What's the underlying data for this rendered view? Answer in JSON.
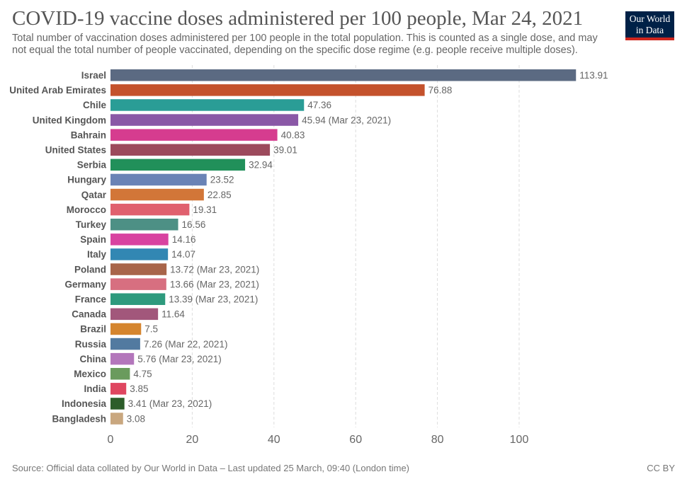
{
  "header": {
    "title": "COVID-19 vaccine doses administered per 100 people, Mar 24, 2021",
    "subtitle": "Total number of vaccination doses administered per 100 people in the total population. This is counted as a single dose, and may not equal the total number of people vaccinated, depending on the specific dose regime (e.g. people receive multiple doses).",
    "logo_line1": "Our World",
    "logo_line2": "in Data"
  },
  "footer": {
    "source": "Source: Official data collated by Our World in Data – Last updated 25 March, 09:40 (London time)",
    "license": "CC BY"
  },
  "chart_data": {
    "type": "bar",
    "orientation": "horizontal",
    "title": "COVID-19 vaccine doses administered per 100 people, Mar 24, 2021",
    "xlabel": "",
    "ylabel": "",
    "xlim": [
      0,
      120
    ],
    "xticks": [
      0,
      20,
      40,
      60,
      80,
      100
    ],
    "grid": "vertical dashed",
    "categories": [
      "Israel",
      "United Arab Emirates",
      "Chile",
      "United Kingdom",
      "Bahrain",
      "United States",
      "Serbia",
      "Hungary",
      "Qatar",
      "Morocco",
      "Turkey",
      "Spain",
      "Italy",
      "Poland",
      "Germany",
      "France",
      "Canada",
      "Brazil",
      "Russia",
      "China",
      "Mexico",
      "India",
      "Indonesia",
      "Bangladesh"
    ],
    "values": [
      113.91,
      76.88,
      47.36,
      45.94,
      40.83,
      39.01,
      32.94,
      23.52,
      22.85,
      19.31,
      16.56,
      14.16,
      14.07,
      13.72,
      13.66,
      13.39,
      11.64,
      7.5,
      7.26,
      5.76,
      4.75,
      3.85,
      3.41,
      3.08
    ],
    "value_labels": [
      "113.91",
      "76.88",
      "47.36",
      "45.94 (Mar 23, 2021)",
      "40.83",
      "39.01",
      "32.94",
      "23.52",
      "22.85",
      "19.31",
      "16.56",
      "14.16",
      "14.07",
      "13.72 (Mar 23, 2021)",
      "13.66 (Mar 23, 2021)",
      "13.39 (Mar 23, 2021)",
      "11.64",
      "7.5",
      "7.26 (Mar 22, 2021)",
      "5.76 (Mar 23, 2021)",
      "4.75",
      "3.85",
      "3.41 (Mar 23, 2021)",
      "3.08"
    ],
    "colors": [
      "#5b6a82",
      "#c4522c",
      "#2a9d96",
      "#8a58a6",
      "#d63c8f",
      "#9c4a5c",
      "#21905a",
      "#6a83b6",
      "#d27638",
      "#e0606e",
      "#4d9085",
      "#d843a0",
      "#3287b3",
      "#a8654a",
      "#d76f80",
      "#2e9a7d",
      "#a2577b",
      "#d5852e",
      "#527aa0",
      "#b376bb",
      "#6a9b5d",
      "#df4660",
      "#2c5d2a",
      "#c9a77f"
    ]
  }
}
